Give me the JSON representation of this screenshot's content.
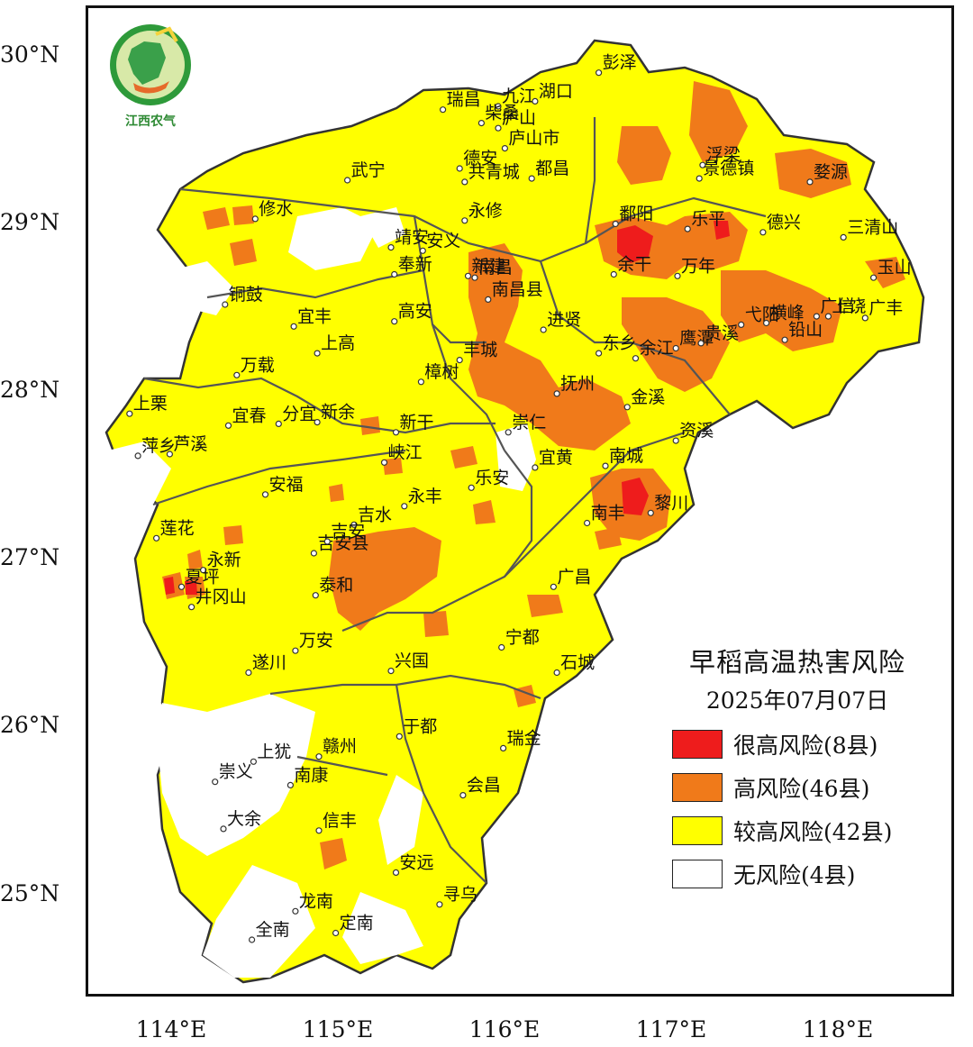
{
  "colors": {
    "very_high": "#ee1c1c",
    "high": "#f07a1a",
    "moderate": "#ffff00",
    "none": "#ffffff",
    "boundary": "#555555"
  },
  "logo": {
    "text": "江西农气",
    "icon": "jiangxi-agro-meteorology-logo"
  },
  "latitude_labels": [
    "30°N",
    "29°N",
    "28°N",
    "27°N",
    "26°N",
    "25°N"
  ],
  "longitude_labels": [
    "114°E",
    "115°E",
    "116°E",
    "117°E",
    "118°E"
  ],
  "legend": {
    "title": "早稻高温热害风险",
    "date": "2025年07月07日",
    "items": [
      {
        "label": "很高风险(8县)",
        "color": "#ee1c1c"
      },
      {
        "label": "高风险(46县)",
        "color": "#f07a1a"
      },
      {
        "label": "较高风险(42县)",
        "color": "#ffff00"
      },
      {
        "label": "无风险(4县)",
        "color": "#ffffff"
      }
    ]
  },
  "cities": [
    {
      "name": "彭泽",
      "lon": 116.6,
      "lat": 29.9
    },
    {
      "name": "瑞昌",
      "lon": 115.67,
      "lat": 29.68
    },
    {
      "name": "九江",
      "lon": 116.0,
      "lat": 29.7
    },
    {
      "name": "湖口",
      "lon": 116.22,
      "lat": 29.73
    },
    {
      "name": "柴桑",
      "lon": 115.9,
      "lat": 29.6
    },
    {
      "name": "庐山",
      "lon": 116.0,
      "lat": 29.57
    },
    {
      "name": "德安",
      "lon": 115.77,
      "lat": 29.33
    },
    {
      "name": "庐山市",
      "lon": 116.04,
      "lat": 29.45
    },
    {
      "name": "武宁",
      "lon": 115.1,
      "lat": 29.26
    },
    {
      "name": "共青城",
      "lon": 115.8,
      "lat": 29.25
    },
    {
      "name": "都昌",
      "lon": 116.2,
      "lat": 29.27
    },
    {
      "name": "永修",
      "lon": 115.8,
      "lat": 29.02
    },
    {
      "name": "修水",
      "lon": 114.55,
      "lat": 29.03
    },
    {
      "name": "鄱阳",
      "lon": 116.7,
      "lat": 29.0
    },
    {
      "name": "乐平",
      "lon": 117.13,
      "lat": 28.97
    },
    {
      "name": "浮梁",
      "lon": 117.22,
      "lat": 29.35
    },
    {
      "name": "景德镇",
      "lon": 117.2,
      "lat": 29.27
    },
    {
      "name": "婺源",
      "lon": 117.86,
      "lat": 29.25
    },
    {
      "name": "德兴",
      "lon": 117.58,
      "lat": 28.95
    },
    {
      "name": "三清山",
      "lon": 118.06,
      "lat": 28.92
    },
    {
      "name": "靖安",
      "lon": 115.36,
      "lat": 28.86
    },
    {
      "name": "安义",
      "lon": 115.55,
      "lat": 28.84
    },
    {
      "name": "奉新",
      "lon": 115.38,
      "lat": 28.7
    },
    {
      "name": "新建",
      "lon": 115.82,
      "lat": 28.69
    },
    {
      "name": "余干",
      "lon": 116.69,
      "lat": 28.7
    },
    {
      "name": "万年",
      "lon": 117.07,
      "lat": 28.69
    },
    {
      "name": "弋阳",
      "lon": 117.45,
      "lat": 28.4
    },
    {
      "name": "广信",
      "lon": 117.9,
      "lat": 28.45
    },
    {
      "name": "玉山",
      "lon": 118.24,
      "lat": 28.68
    },
    {
      "name": "南昌",
      "lon": 115.86,
      "lat": 28.68
    },
    {
      "name": "南昌县",
      "lon": 115.94,
      "lat": 28.55
    },
    {
      "name": "铜鼓",
      "lon": 114.37,
      "lat": 28.52
    },
    {
      "name": "宜丰",
      "lon": 114.78,
      "lat": 28.39
    },
    {
      "name": "高安",
      "lon": 115.38,
      "lat": 28.42
    },
    {
      "name": "进贤",
      "lon": 116.27,
      "lat": 28.37
    },
    {
      "name": "横峰",
      "lon": 117.6,
      "lat": 28.41
    },
    {
      "name": "上饶",
      "lon": 117.97,
      "lat": 28.45
    },
    {
      "name": "广丰",
      "lon": 118.19,
      "lat": 28.44
    },
    {
      "name": "上高",
      "lon": 114.92,
      "lat": 28.23
    },
    {
      "name": "丰城",
      "lon": 115.77,
      "lat": 28.19
    },
    {
      "name": "东乡",
      "lon": 116.6,
      "lat": 28.23
    },
    {
      "name": "鹰潭",
      "lon": 117.06,
      "lat": 28.26
    },
    {
      "name": "万载",
      "lon": 114.44,
      "lat": 28.1
    },
    {
      "name": "余江",
      "lon": 116.82,
      "lat": 28.2
    },
    {
      "name": "贵溪",
      "lon": 117.21,
      "lat": 28.29
    },
    {
      "name": "铅山",
      "lon": 117.71,
      "lat": 28.31
    },
    {
      "name": "樟树",
      "lon": 115.54,
      "lat": 28.06
    },
    {
      "name": "金溪",
      "lon": 116.77,
      "lat": 27.91
    },
    {
      "name": "抚州",
      "lon": 116.35,
      "lat": 27.99
    },
    {
      "name": "上栗",
      "lon": 113.8,
      "lat": 27.87
    },
    {
      "name": "宜春",
      "lon": 114.39,
      "lat": 27.8
    },
    {
      "name": "分宜",
      "lon": 114.69,
      "lat": 27.81
    },
    {
      "name": "新余",
      "lon": 114.92,
      "lat": 27.82
    },
    {
      "name": "新干",
      "lon": 115.39,
      "lat": 27.76
    },
    {
      "name": "崇仁",
      "lon": 116.06,
      "lat": 27.76
    },
    {
      "name": "资溪",
      "lon": 117.06,
      "lat": 27.71
    },
    {
      "name": "萍乡",
      "lon": 113.85,
      "lat": 27.62
    },
    {
      "name": "芦溪",
      "lon": 114.04,
      "lat": 27.63
    },
    {
      "name": "峡江",
      "lon": 115.32,
      "lat": 27.58
    },
    {
      "name": "宜黄",
      "lon": 116.22,
      "lat": 27.55
    },
    {
      "name": "南城",
      "lon": 116.64,
      "lat": 27.56
    },
    {
      "name": "乐安",
      "lon": 115.84,
      "lat": 27.43
    },
    {
      "name": "安福",
      "lon": 114.61,
      "lat": 27.39
    },
    {
      "name": "永丰",
      "lon": 115.44,
      "lat": 27.32
    },
    {
      "name": "黎川",
      "lon": 116.91,
      "lat": 27.28
    },
    {
      "name": "吉水",
      "lon": 115.14,
      "lat": 27.21
    },
    {
      "name": "南丰",
      "lon": 116.53,
      "lat": 27.22
    },
    {
      "name": "莲花",
      "lon": 113.96,
      "lat": 27.13
    },
    {
      "name": "吉安县",
      "lon": 114.9,
      "lat": 27.04
    },
    {
      "name": "吉安",
      "lon": 114.98,
      "lat": 27.11
    },
    {
      "name": "永新",
      "lon": 114.24,
      "lat": 26.94
    },
    {
      "name": "泰和",
      "lon": 114.91,
      "lat": 26.79
    },
    {
      "name": "广昌",
      "lon": 116.33,
      "lat": 26.84
    },
    {
      "name": "夏坪",
      "lon": 114.11,
      "lat": 26.84
    },
    {
      "name": "井冈山",
      "lon": 114.17,
      "lat": 26.72
    },
    {
      "name": "万安",
      "lon": 114.79,
      "lat": 26.46
    },
    {
      "name": "宁都",
      "lon": 116.02,
      "lat": 26.48
    },
    {
      "name": "遂川",
      "lon": 114.51,
      "lat": 26.33
    },
    {
      "name": "石城",
      "lon": 116.35,
      "lat": 26.33
    },
    {
      "name": "兴国",
      "lon": 115.36,
      "lat": 26.34
    },
    {
      "name": "于都",
      "lon": 115.41,
      "lat": 25.95
    },
    {
      "name": "瑞金",
      "lon": 116.03,
      "lat": 25.88
    },
    {
      "name": "上犹",
      "lon": 114.54,
      "lat": 25.8
    },
    {
      "name": "赣州",
      "lon": 114.93,
      "lat": 25.83
    },
    {
      "name": "崇义",
      "lon": 114.31,
      "lat": 25.68
    },
    {
      "name": "南康",
      "lon": 114.76,
      "lat": 25.66
    },
    {
      "name": "会昌",
      "lon": 115.79,
      "lat": 25.6
    },
    {
      "name": "大余",
      "lon": 114.36,
      "lat": 25.4
    },
    {
      "name": "信丰",
      "lon": 114.93,
      "lat": 25.39
    },
    {
      "name": "安远",
      "lon": 115.39,
      "lat": 25.14
    },
    {
      "name": "寻乌",
      "lon": 115.65,
      "lat": 24.95
    },
    {
      "name": "龙南",
      "lon": 114.79,
      "lat": 24.91
    },
    {
      "name": "全南",
      "lon": 114.53,
      "lat": 24.74
    },
    {
      "name": "定南",
      "lon": 115.03,
      "lat": 24.78
    }
  ]
}
